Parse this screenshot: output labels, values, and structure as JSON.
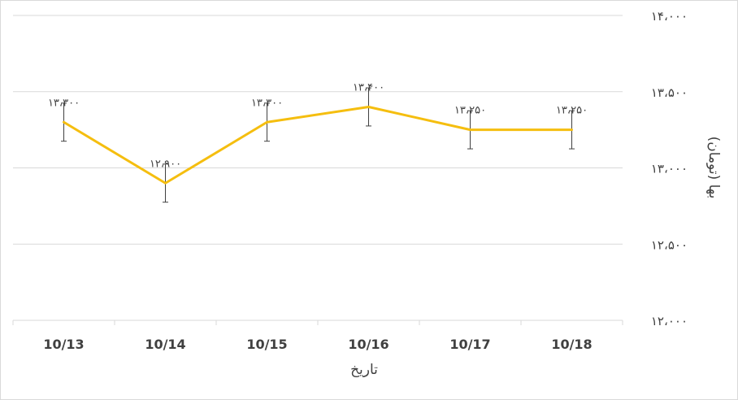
{
  "chart_data": {
    "type": "line",
    "categories": [
      "10/13",
      "10/14",
      "10/15",
      "10/16",
      "10/17",
      "10/18"
    ],
    "series": [
      {
        "values": [
          13300,
          12900,
          13300,
          13400,
          13250,
          13250
        ]
      }
    ],
    "data_labels": [
      "۱۳،۳۰۰",
      "۱۲،۹۰۰",
      "۱۳،۳۰۰",
      "۱۳،۴۰۰",
      "۱۳،۲۵۰",
      "۱۳،۲۵۰"
    ],
    "error_bar": 125,
    "y_ticks": [
      12000,
      12500,
      13000,
      13500,
      14000
    ],
    "y_tick_labels": [
      "۱۲،۰۰۰",
      "۱۲،۵۰۰",
      "۱۳،۰۰۰",
      "۱۳،۵۰۰",
      "۱۴،۰۰۰"
    ],
    "ylim": [
      12000,
      14000
    ],
    "xlabel": "تاریخ",
    "ylabel": "بها (تومان)",
    "y_axis_side": "right",
    "grid": true,
    "line_color": "#F5BE0F",
    "grid_color": "#d9d9d9",
    "text_color": "#404040"
  }
}
